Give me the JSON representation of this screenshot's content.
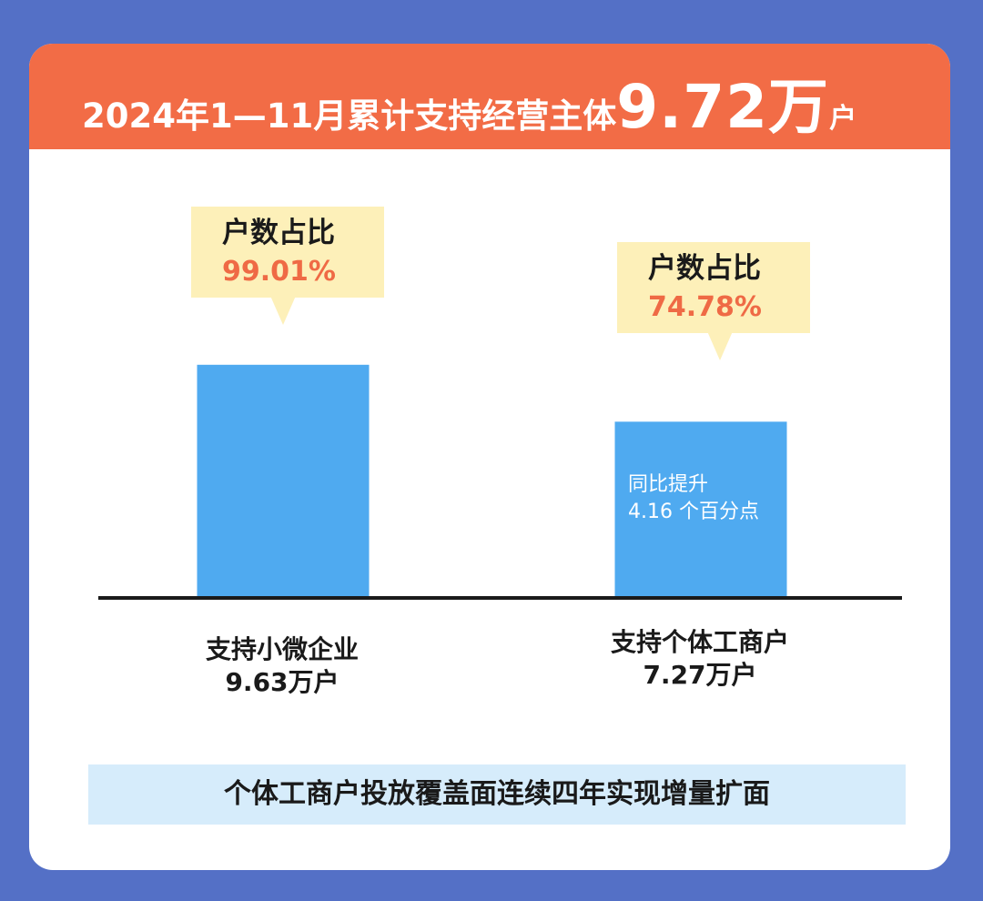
{
  "header": {
    "title_prefix": "2024年1—11月累计支持经营主体",
    "title_value": "9.72万",
    "title_unit": "户"
  },
  "chart_data": {
    "type": "bar",
    "categories": [
      "支持小微企业",
      "支持个体工商户"
    ],
    "values": [
      9.63,
      7.27
    ],
    "value_labels": [
      "9.63万户",
      "7.27万户"
    ],
    "unit": "万户",
    "share_label": "户数占比",
    "shares": [
      "99.01%",
      "74.78%"
    ],
    "bar_note": [
      "同比提升",
      "4.16 个百分点"
    ]
  },
  "footer": {
    "banner": "个体工商户投放覆盖面连续四年实现增量扩面"
  },
  "colors": {
    "background": "#5470c6",
    "header": "#f26c46",
    "bar": "#4faaf0",
    "callout": "#fdf0b9",
    "percent": "#ef6a45",
    "banner": "#d6ecfb"
  }
}
